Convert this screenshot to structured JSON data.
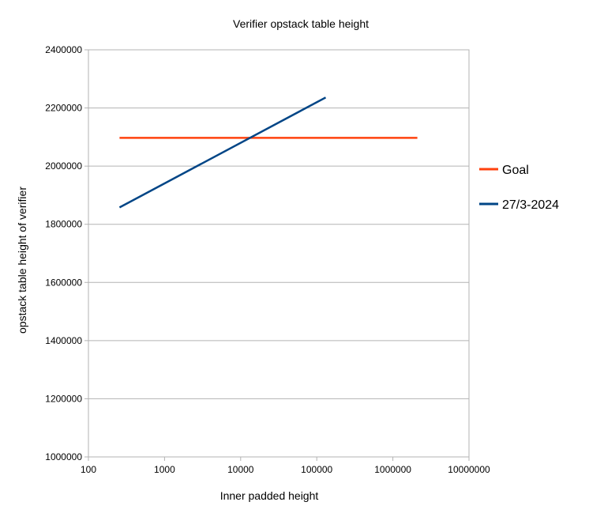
{
  "chart_data": {
    "type": "line",
    "title": "Verifier opstack table height",
    "xlabel": "Inner padded height",
    "ylabel": "opstack table height of verifier",
    "x_scale": "log",
    "xlim": [
      100,
      10000000
    ],
    "ylim": [
      1000000,
      2400000
    ],
    "x_ticks": [
      "100",
      "1000",
      "10000",
      "100000",
      "1000000",
      "10000000"
    ],
    "y_ticks": [
      "1000000",
      "1200000",
      "1400000",
      "1600000",
      "1800000",
      "2000000",
      "2200000",
      "2400000"
    ],
    "grid": "horizontal",
    "legend_position": "right",
    "series": [
      {
        "name": "Goal",
        "color": "#ff420e",
        "x": [
          256,
          2097152
        ],
        "y": [
          2097152,
          2097152
        ]
      },
      {
        "name": "27/3-2024",
        "color": "#004586",
        "x": [
          256,
          131072
        ],
        "y": [
          1858000,
          2236000
        ]
      }
    ]
  }
}
